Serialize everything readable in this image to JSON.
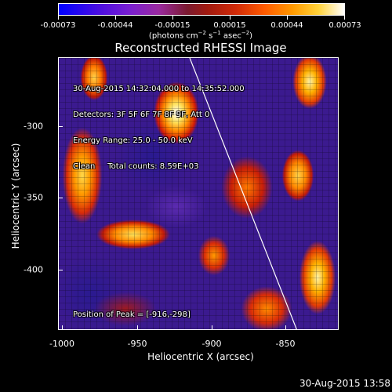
{
  "colorbar": {
    "ticks": [
      "-0.00073",
      "-0.00044",
      "-0.00015",
      "0.00015",
      "0.00044",
      "0.00073"
    ],
    "units_parts": {
      "prefix": "(photons cm",
      "exp1": "−2",
      "mid1": " s",
      "exp2": "−1",
      "mid2": " asec",
      "exp3": "−2",
      "suffix": ")"
    },
    "gradient_colors": [
      "#0000ff",
      "#7a1fd0",
      "#a01a10",
      "#ff5a00",
      "#ffd23a",
      "#ffffff"
    ]
  },
  "plot": {
    "title": "Reconstructed RHESSI Image",
    "info_lines": [
      "30-Aug-2015 14:32:04.000 to 14:35:52.000",
      "Detectors: 3F 5F 6F 7F 8F 9F, Att 0",
      "Energy Range: 25.0 - 50.0 keV",
      "Clean     Total counts: 8.59E+03"
    ],
    "peak_text": "Position of Peak = [-916,-298]",
    "x_axis": {
      "title": "Heliocentric X (arcsec)",
      "ticks": [
        "-1000",
        "-950",
        "-900",
        "-850"
      ]
    },
    "y_axis": {
      "title": "Heliocentric Y (arcsec)",
      "ticks": [
        "-300",
        "-350",
        "-400"
      ]
    }
  },
  "footer": {
    "timestamp": "30-Aug-2015 13:58"
  }
}
